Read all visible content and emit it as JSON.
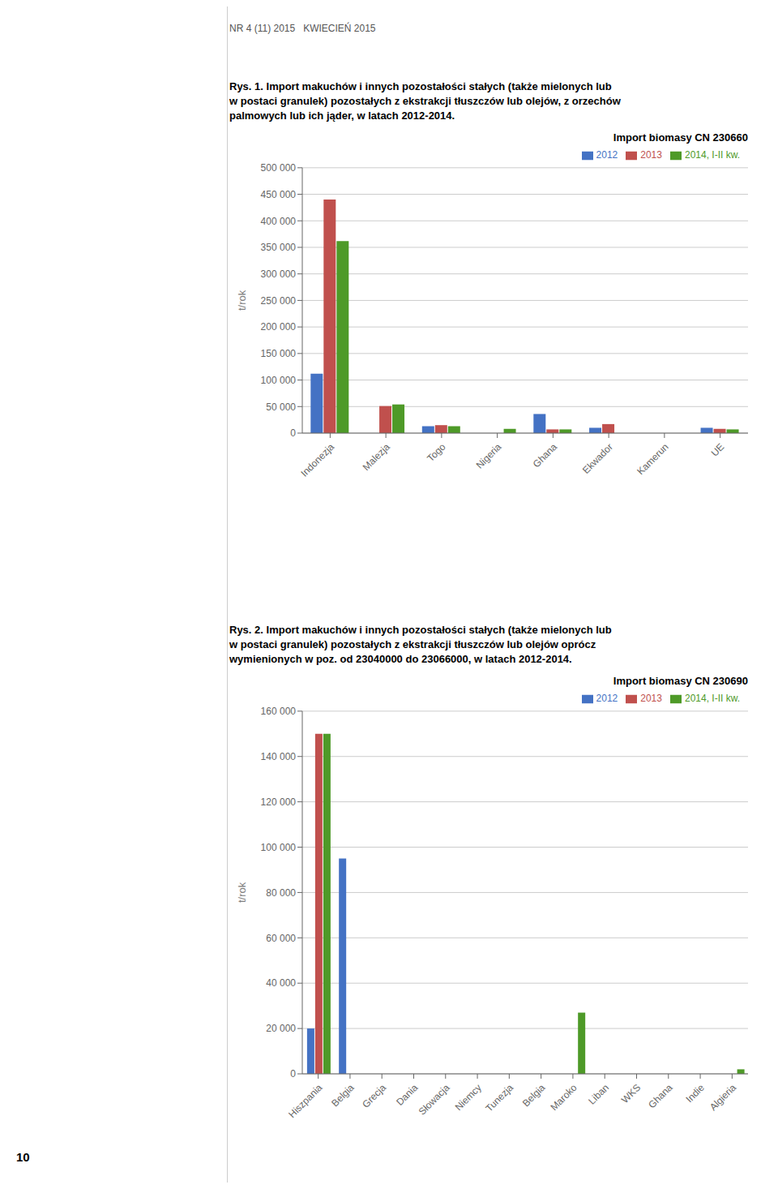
{
  "annotations": [
    "NR 4 (11) 2015   KWIECIEŃ 2015",
    "10"
  ],
  "chart_data": [
    {
      "type": "bar",
      "title": "Rys. 1. Import makuchów i innych pozostałości stałych (także mielonych lub\nw postaci granulek) pozostałych z ekstrakcji tłuszczów lub olejów, z orzechów\npalmowych lub ich jąder, w latach 2012-2014.",
      "subtitle": "Import biomasy CN 230660",
      "y_label": "t/rok",
      "categories": [
        "Indonezja",
        "Malezja",
        "Togo",
        "Nigeria",
        "Ghana",
        "Ekwador",
        "Kamerun",
        "UE"
      ],
      "series": [
        {
          "name": "2012",
          "color": "#4472C4",
          "values": [
            112000,
            0,
            13000,
            0,
            36000,
            10000,
            0,
            10000
          ]
        },
        {
          "name": "2013",
          "color": "#C0504D",
          "values": [
            440000,
            51000,
            15000,
            0,
            7000,
            17000,
            0,
            8000
          ]
        },
        {
          "name": "2014, I-II kw.",
          "color": "#4E9A28",
          "values": [
            362000,
            54000,
            13000,
            8000,
            7000,
            0,
            0,
            7000
          ]
        }
      ],
      "ylim": [
        0,
        500000
      ],
      "yticks": [
        0,
        {
          "value": 50000,
          "label": "50 000"
        },
        {
          "value": 100000,
          "label": "100 000"
        },
        {
          "value": 150000,
          "label": "150 000"
        },
        {
          "value": 200000,
          "label": "200 000"
        },
        {
          "value": 250000,
          "label": "250 000"
        },
        {
          "value": 300000,
          "label": "300 000"
        },
        {
          "value": 350000,
          "label": "350 000"
        },
        {
          "value": 400000,
          "label": "400 000"
        },
        {
          "value": 450000,
          "label": "450 000"
        },
        {
          "value": 500000,
          "label": "500 000"
        }
      ],
      "grid": true,
      "legend": "upper right"
    },
    {
      "type": "bar",
      "title": "Rys. 2. Import makuchów i innych pozostałości stałych (także mielonych lub\nw postaci granulek) pozostałych z ekstrakcji tłuszczów lub olejów oprócz\nwymienionych w poz. od 23040000 do 23066000, w latach 2012-2014.",
      "subtitle": "Import biomasy CN 230690",
      "y_label": "t/rok",
      "categories": [
        "Hiszpania",
        "Belgia",
        "Grecja",
        "Dania",
        "Słowacja",
        "Niemcy",
        "Tunezja",
        "Belgia",
        "Maroko",
        "Liban",
        "WKS",
        "Ghana",
        "Indie",
        "Algieria"
      ],
      "series": [
        {
          "name": "2012",
          "color": "#4472C4",
          "values": [
            20000,
            95000,
            0,
            0,
            0,
            0,
            0,
            0,
            0,
            0,
            0,
            0,
            0,
            0
          ]
        },
        {
          "name": "2013",
          "color": "#C0504D",
          "values": [
            150000,
            0,
            0,
            0,
            0,
            0,
            0,
            0,
            0,
            0,
            0,
            0,
            0,
            0
          ]
        },
        {
          "name": "2014, I-II kw.",
          "color": "#4E9A28",
          "values": [
            150000,
            0,
            0,
            0,
            0,
            0,
            0,
            0,
            27000,
            0,
            0,
            0,
            0,
            2000
          ]
        }
      ],
      "ylim": [
        0,
        160000
      ],
      "yticks": [
        0,
        {
          "value": 20000,
          "label": "20 000"
        },
        {
          "value": 40000,
          "label": "40 000"
        },
        {
          "value": 60000,
          "label": "60 000"
        },
        {
          "value": 80000,
          "label": "80 000"
        },
        {
          "value": 100000,
          "label": "100 000"
        },
        {
          "value": 120000,
          "label": "120 000"
        },
        {
          "value": 140000,
          "label": "140 000"
        },
        {
          "value": 160000,
          "label": "160 000"
        }
      ],
      "grid": true,
      "legend": "upper right"
    }
  ]
}
